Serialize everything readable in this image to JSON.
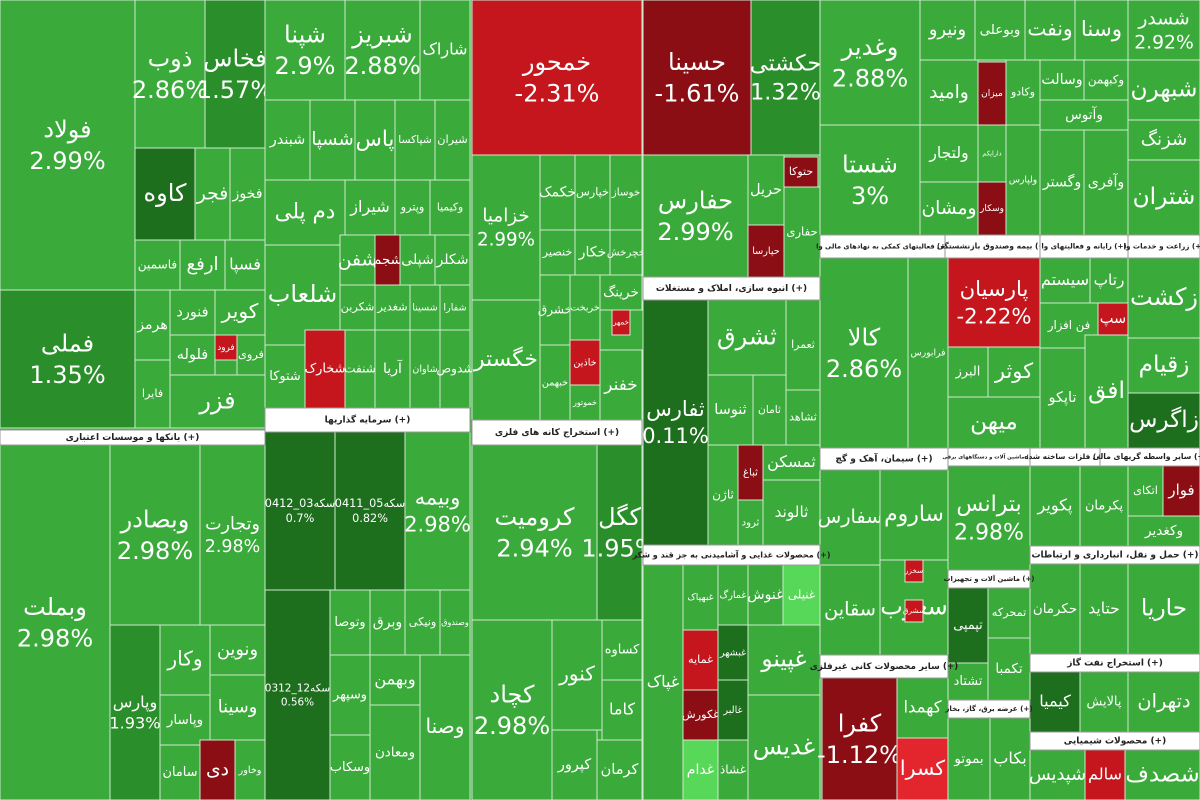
{
  "chart_data": {
    "type": "treemap",
    "headers": [
      "بانکها و موسسات اعتباری (+)",
      "سرمایه گذاریها (+)",
      "استخراج کانه های فلزی (+)",
      "انبوه سازی، املاک و مستغلات (+)",
      "محصولات غذایی و آشامیدنی به جز قند و شکر (+)",
      "فعالیتهای کمکی به نهادهای مالی وا (+)",
      "بیمه وصندوق بازنشستگی (+)",
      "رایانه و فعالیتهای وا (+)",
      "زراعت و خدمات وا (+)",
      "سیمان، آهک و گچ (+)",
      "سایر محصولات کانی غیرفلزی (+)",
      "ماشین آلات و دستگاههای برقی (+)",
      "ماشین آلات و تجهیزات (+)",
      "عرضه برق، گاز، بخار (+)",
      "فلزات ساخته شده (+)",
      "سایر واسطه گریهای مالی (+)",
      "حمل و نقل، انبارداری و ارتباطات (+)",
      "استخراج نفت گاز (+)",
      "محصولات شیمیایی (+)"
    ],
    "tiles": [
      {
        "name": "فولاد",
        "value": 2.99,
        "value_label": "2.99%",
        "color": "#3aab3a"
      },
      {
        "name": "فملی",
        "value": 1.35,
        "value_label": "1.35%",
        "color": "#2a8f2a"
      },
      {
        "name": "ذوب",
        "value": 2.86,
        "value_label": "2.86%",
        "color": "#3aab3a"
      },
      {
        "name": "فخاس",
        "value": 1.57,
        "value_label": "1.57%",
        "color": "#2a8f2a"
      },
      {
        "name": "کاوه",
        "color": "#1d6e1d"
      },
      {
        "name": "فجر",
        "color": "#3aab3a"
      },
      {
        "name": "فخوز",
        "color": "#3aab3a"
      },
      {
        "name": "فاسمین",
        "color": "#3aab3a"
      },
      {
        "name": "ارفع",
        "color": "#3aab3a"
      },
      {
        "name": "فسپا",
        "color": "#3aab3a"
      },
      {
        "name": "هرمز",
        "color": "#3aab3a"
      },
      {
        "name": "فنورد",
        "color": "#3aab3a"
      },
      {
        "name": "کویر",
        "color": "#3aab3a"
      },
      {
        "name": "فایرا",
        "color": "#3aab3a"
      },
      {
        "name": "فلوله",
        "color": "#3aab3a"
      },
      {
        "name": "فرود",
        "color": "#c4161c"
      },
      {
        "name": "فروی",
        "color": "#3aab3a"
      },
      {
        "name": "فزر",
        "color": "#3aab3a"
      },
      {
        "name": "وبملت",
        "value": 2.98,
        "value_label": "2.98%",
        "color": "#3aab3a"
      },
      {
        "name": "وبصادر",
        "value": 2.98,
        "value_label": "2.98%",
        "color": "#3aab3a"
      },
      {
        "name": "وتجارت",
        "value": 2.98,
        "value_label": "2.98%",
        "color": "#3aab3a"
      },
      {
        "name": "وپارس",
        "value": 1.93,
        "value_label": "1.93%",
        "color": "#2a8f2a"
      },
      {
        "name": "وکار",
        "color": "#3aab3a"
      },
      {
        "name": "ونوین",
        "color": "#3aab3a"
      },
      {
        "name": "وسینا",
        "color": "#3aab3a"
      },
      {
        "name": "وپاسار",
        "color": "#3aab3a"
      },
      {
        "name": "سامان",
        "color": "#3aab3a"
      },
      {
        "name": "دی",
        "color": "#8a0e14"
      },
      {
        "name": "وخاور",
        "color": "#3aab3a"
      },
      {
        "name": "شپنا",
        "value": 2.9,
        "value_label": "2.9%",
        "color": "#3aab3a"
      },
      {
        "name": "شبریز",
        "value": 2.88,
        "value_label": "2.88%",
        "color": "#3aab3a"
      },
      {
        "name": "شاراک",
        "color": "#3aab3a"
      },
      {
        "name": "شبندر",
        "color": "#3aab3a"
      },
      {
        "name": "شسپا",
        "color": "#3aab3a"
      },
      {
        "name": "پاس",
        "color": "#3aab3a"
      },
      {
        "name": "شپاکسا",
        "color": "#3aab3a"
      },
      {
        "name": "شیران",
        "color": "#3aab3a"
      },
      {
        "name": "دم پلی",
        "color": "#3aab3a"
      },
      {
        "name": "شیراز",
        "color": "#3aab3a"
      },
      {
        "name": "وپترو",
        "color": "#3aab3a"
      },
      {
        "name": "وکیمیا",
        "color": "#3aab3a"
      },
      {
        "name": "شلعاب",
        "color": "#3aab3a"
      },
      {
        "name": "شفن",
        "color": "#3aab3a"
      },
      {
        "name": "شجم",
        "color": "#8a0e14"
      },
      {
        "name": "شپلی",
        "color": "#3aab3a"
      },
      {
        "name": "شکلر",
        "color": "#3aab3a"
      },
      {
        "name": "شکربن",
        "color": "#3aab3a"
      },
      {
        "name": "شغدیر",
        "color": "#3aab3a"
      },
      {
        "name": "شسینا",
        "color": "#3aab3a"
      },
      {
        "name": "شفارا",
        "color": "#3aab3a"
      },
      {
        "name": "شتوکا",
        "color": "#3aab3a"
      },
      {
        "name": "شخارک",
        "color": "#c4161c"
      },
      {
        "name": "شنفت",
        "color": "#3aab3a"
      },
      {
        "name": "آریا",
        "color": "#3aab3a"
      },
      {
        "name": "شاوان",
        "color": "#3aab3a"
      },
      {
        "name": "شدوص",
        "color": "#3aab3a"
      },
      {
        "name": "سکه03_0412",
        "value": 0.7,
        "value_label": "0.7%",
        "color": "#1d6e1d"
      },
      {
        "name": "سکه05_0411",
        "value": 0.82,
        "value_label": "0.82%",
        "color": "#1d6e1d"
      },
      {
        "name": "وبیمه",
        "value": 2.98,
        "value_label": "2.98%",
        "color": "#3aab3a"
      },
      {
        "name": "سکه12_0312",
        "value": 0.56,
        "value_label": "0.56%",
        "color": "#1d6e1d"
      },
      {
        "name": "وتوصا",
        "color": "#3aab3a"
      },
      {
        "name": "وبرق",
        "color": "#3aab3a"
      },
      {
        "name": "ونیکی",
        "color": "#3aab3a"
      },
      {
        "name": "وصندوق",
        "color": "#3aab3a"
      },
      {
        "name": "وسپهر",
        "color": "#3aab3a"
      },
      {
        "name": "وبهمن",
        "color": "#3aab3a"
      },
      {
        "name": "وصنا",
        "color": "#3aab3a"
      },
      {
        "name": "ومعادن",
        "color": "#3aab3a"
      },
      {
        "name": "وسکاب",
        "color": "#3aab3a"
      },
      {
        "name": "خمحور",
        "value": -2.31,
        "value_label": "-2.31%",
        "color": "#c4161c"
      },
      {
        "name": "خزامیا",
        "value": 2.99,
        "value_label": "2.99%",
        "color": "#3aab3a"
      },
      {
        "name": "خکمک",
        "color": "#3aab3a"
      },
      {
        "name": "خپارس",
        "color": "#3aab3a"
      },
      {
        "name": "خوساز",
        "color": "#3aab3a"
      },
      {
        "name": "خنصیر",
        "color": "#3aab3a"
      },
      {
        "name": "خکار",
        "color": "#3aab3a"
      },
      {
        "name": "خچرخش",
        "color": "#3aab3a"
      },
      {
        "name": "خگستر",
        "color": "#3aab3a"
      },
      {
        "name": "خشرق",
        "color": "#3aab3a"
      },
      {
        "name": "خاذین",
        "color": "#c4161c"
      },
      {
        "name": "خریخت",
        "color": "#3aab3a"
      },
      {
        "name": "خرینگ",
        "color": "#3aab3a"
      },
      {
        "name": "خمهر",
        "color": "#c4161c"
      },
      {
        "name": "خبهمن",
        "color": "#3aab3a"
      },
      {
        "name": "خفنر",
        "color": "#3aab3a"
      },
      {
        "name": "خموتور",
        "color": "#3aab3a"
      },
      {
        "name": "کرومیت",
        "value": 2.94,
        "value_label": "2.94%",
        "color": "#3aab3a"
      },
      {
        "name": "کگل",
        "value": 1.95,
        "value_label": "1.95%",
        "color": "#2a8f2a"
      },
      {
        "name": "کچاد",
        "value": 2.98,
        "value_label": "2.98%",
        "color": "#3aab3a"
      },
      {
        "name": "کنور",
        "color": "#3aab3a"
      },
      {
        "name": "کساوه",
        "color": "#3aab3a"
      },
      {
        "name": "کاما",
        "color": "#3aab3a"
      },
      {
        "name": "کپرور",
        "color": "#3aab3a"
      },
      {
        "name": "کرمان",
        "color": "#3aab3a"
      },
      {
        "name": "حسینا",
        "value": -1.61,
        "value_label": "-1.61%",
        "color": "#8a0e14"
      },
      {
        "name": "حکشتی",
        "value": 1.32,
        "value_label": "1.32%",
        "color": "#2a8f2a"
      },
      {
        "name": "حفارس",
        "value": 2.99,
        "value_label": "2.99%",
        "color": "#3aab3a"
      },
      {
        "name": "حتوکا",
        "color": "#8a0e14"
      },
      {
        "name": "حریل",
        "color": "#3aab3a"
      },
      {
        "name": "حپارسا",
        "color": "#8a0e14"
      },
      {
        "name": "حفاری",
        "color": "#3aab3a"
      },
      {
        "name": "ثفارس",
        "value": 0.11,
        "value_label": "0.11%",
        "color": "#1d6e1d"
      },
      {
        "name": "ثشرق",
        "color": "#3aab3a"
      },
      {
        "name": "ثعمرا",
        "color": "#3aab3a"
      },
      {
        "name": "ثنوسا",
        "color": "#3aab3a"
      },
      {
        "name": "ثامان",
        "color": "#3aab3a"
      },
      {
        "name": "ثشاهد",
        "color": "#3aab3a"
      },
      {
        "name": "ثباغ",
        "color": "#8a0e14"
      },
      {
        "name": "ثاژن",
        "color": "#3aab3a"
      },
      {
        "name": "ثمسکن",
        "color": "#3aab3a"
      },
      {
        "name": "ثالوند",
        "color": "#3aab3a"
      },
      {
        "name": "ثرود",
        "color": "#3aab3a"
      },
      {
        "name": "غپاک",
        "color": "#3aab3a"
      },
      {
        "name": "غبهپاک",
        "color": "#3aab3a"
      },
      {
        "name": "غمارگ",
        "color": "#3aab3a"
      },
      {
        "name": "غنوش",
        "color": "#3aab3a"
      },
      {
        "name": "غنیلی",
        "color": "#58d858"
      },
      {
        "name": "غمایه",
        "color": "#c4161c"
      },
      {
        "name": "غکورش",
        "color": "#8a0e14"
      },
      {
        "name": "غدام",
        "color": "#58d858"
      },
      {
        "name": "غبشهر",
        "color": "#1d6e1d"
      },
      {
        "name": "غالبر",
        "color": "#1d6e1d"
      },
      {
        "name": "غشاذ",
        "color": "#3aab3a"
      },
      {
        "name": "غپینو",
        "color": "#3aab3a"
      },
      {
        "name": "غدیس",
        "color": "#3aab3a"
      },
      {
        "name": "وغدیر",
        "value": 2.88,
        "value_label": "2.88%",
        "color": "#3aab3a"
      },
      {
        "name": "شستا",
        "value": 3,
        "value_label": "3%",
        "color": "#3aab3a"
      },
      {
        "name": "ونیرو",
        "color": "#3aab3a"
      },
      {
        "name": "وبوعلی",
        "color": "#3aab3a"
      },
      {
        "name": "ونفت",
        "color": "#3aab3a"
      },
      {
        "name": "وسنا",
        "color": "#3aab3a"
      },
      {
        "name": "میزان",
        "color": "#8a0e14"
      },
      {
        "name": "وامید",
        "color": "#3aab3a"
      },
      {
        "name": "وکادو",
        "color": "#3aab3a"
      },
      {
        "name": "وسالت",
        "color": "#3aab3a"
      },
      {
        "name": "وکبهمن",
        "color": "#3aab3a"
      },
      {
        "name": "وآتوس",
        "color": "#3aab3a"
      },
      {
        "name": "ولتجار",
        "color": "#3aab3a"
      },
      {
        "name": "دارایکم",
        "color": "#3aab3a"
      },
      {
        "name": "وسکار",
        "color": "#8a0e14"
      },
      {
        "name": "ومشان",
        "color": "#3aab3a"
      },
      {
        "name": "ولپارس",
        "color": "#3aab3a"
      },
      {
        "name": "وگستر",
        "color": "#3aab3a"
      },
      {
        "name": "وآفری",
        "color": "#3aab3a"
      },
      {
        "name": "شسدر",
        "value": 2.92,
        "value_label": "2.92%",
        "color": "#3aab3a"
      },
      {
        "name": "شبهرن",
        "color": "#3aab3a"
      },
      {
        "name": "شزنگ",
        "color": "#3aab3a"
      },
      {
        "name": "شتران",
        "color": "#3aab3a"
      },
      {
        "name": "کالا",
        "value": 2.86,
        "value_label": "2.86%",
        "color": "#3aab3a"
      },
      {
        "name": "فرابورس",
        "color": "#3aab3a"
      },
      {
        "name": "پارسیان",
        "value": -2.22,
        "value_label": "-2.22%",
        "color": "#c4161c"
      },
      {
        "name": "البرز",
        "color": "#3aab3a"
      },
      {
        "name": "کوثر",
        "color": "#3aab3a"
      },
      {
        "name": "میهن",
        "color": "#3aab3a"
      },
      {
        "name": "سیستم",
        "color": "#3aab3a"
      },
      {
        "name": "رتاپ",
        "color": "#3aab3a"
      },
      {
        "name": "فن افزار",
        "color": "#3aab3a"
      },
      {
        "name": "سپ",
        "color": "#c4161c"
      },
      {
        "name": "تاپکو",
        "color": "#3aab3a"
      },
      {
        "name": "افق",
        "color": "#3aab3a"
      },
      {
        "name": "زکشت",
        "color": "#3aab3a"
      },
      {
        "name": "زقیام",
        "color": "#3aab3a"
      },
      {
        "name": "زاگرس",
        "color": "#1d6e1d"
      },
      {
        "name": "سفارس",
        "color": "#3aab3a"
      },
      {
        "name": "ساروم",
        "color": "#3aab3a"
      },
      {
        "name": "سقاین",
        "color": "#3aab3a"
      },
      {
        "name": "سغرب",
        "color": "#3aab3a"
      },
      {
        "name": "سخزر",
        "color": "#c4161c"
      },
      {
        "name": "سشرق",
        "color": "#c4161c"
      },
      {
        "name": "کفرا",
        "value": -1.12,
        "value_label": "-1.12%",
        "color": "#8a0e14"
      },
      {
        "name": "کهمدا",
        "color": "#3aab3a"
      },
      {
        "name": "کسرا",
        "color": "#e3262d"
      },
      {
        "name": "بترانس",
        "value": 2.98,
        "value_label": "2.98%",
        "color": "#3aab3a"
      },
      {
        "name": "تپمپی",
        "color": "#1d6e1d"
      },
      {
        "name": "تمحرکه",
        "color": "#3aab3a"
      },
      {
        "name": "تشتاد",
        "color": "#3aab3a"
      },
      {
        "name": "تکمبا",
        "color": "#3aab3a"
      },
      {
        "name": "بموتو",
        "color": "#3aab3a"
      },
      {
        "name": "بکاب",
        "color": "#3aab3a"
      },
      {
        "name": "پکویر",
        "color": "#3aab3a"
      },
      {
        "name": "پکرمان",
        "color": "#3aab3a"
      },
      {
        "name": "اتکای",
        "color": "#3aab3a"
      },
      {
        "name": "فوار",
        "color": "#8a0e14"
      },
      {
        "name": "وکغدیر",
        "color": "#3aab3a"
      },
      {
        "name": "حکرمان",
        "color": "#3aab3a"
      },
      {
        "name": "حتاید",
        "color": "#3aab3a"
      },
      {
        "name": "حاریا",
        "color": "#3aab3a"
      },
      {
        "name": "کیمیا",
        "color": "#1d6e1d"
      },
      {
        "name": "پالایش",
        "color": "#3aab3a"
      },
      {
        "name": "دتهران",
        "color": "#3aab3a"
      },
      {
        "name": "شپدیس",
        "color": "#3aab3a"
      },
      {
        "name": "سالم",
        "color": "#c4161c"
      },
      {
        "name": "شصدف",
        "color": "#3aab3a"
      }
    ]
  }
}
